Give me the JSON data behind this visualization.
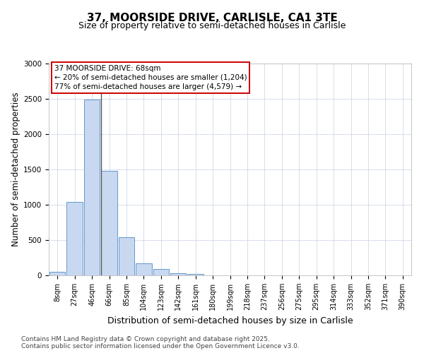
{
  "title1": "37, MOORSIDE DRIVE, CARLISLE, CA1 3TE",
  "title2": "Size of property relative to semi-detached houses in Carlisle",
  "xlabel": "Distribution of semi-detached houses by size in Carlisle",
  "ylabel": "Number of semi-detached properties",
  "categories": [
    "8sqm",
    "27sqm",
    "46sqm",
    "66sqm",
    "85sqm",
    "104sqm",
    "123sqm",
    "142sqm",
    "161sqm",
    "180sqm",
    "199sqm",
    "218sqm",
    "237sqm",
    "256sqm",
    "275sqm",
    "295sqm",
    "314sqm",
    "333sqm",
    "352sqm",
    "371sqm",
    "390sqm"
  ],
  "values": [
    55,
    1040,
    2490,
    1480,
    545,
    175,
    90,
    30,
    25,
    0,
    0,
    0,
    0,
    0,
    0,
    0,
    0,
    0,
    0,
    0,
    0
  ],
  "bar_color": "#c8d8f0",
  "bar_edge_color": "#6699cc",
  "highlight_line_color": "#555555",
  "annotation_text_line1": "37 MOORSIDE DRIVE: 68sqm",
  "annotation_text_line2": "← 20% of semi-detached houses are smaller (1,204)",
  "annotation_text_line3": "77% of semi-detached houses are larger (4,579) →",
  "annotation_box_facecolor": "#ffffff",
  "annotation_box_edgecolor": "#cc0000",
  "ylim": [
    0,
    3000
  ],
  "yticks": [
    0,
    500,
    1000,
    1500,
    2000,
    2500,
    3000
  ],
  "footer1": "Contains HM Land Registry data © Crown copyright and database right 2025.",
  "footer2": "Contains public sector information licensed under the Open Government Licence v3.0.",
  "bg_color": "#ffffff",
  "plot_bg_color": "#ffffff",
  "grid_color": "#d0d8e8",
  "title1_fontsize": 11,
  "title2_fontsize": 9,
  "axis_label_fontsize": 8.5,
  "tick_fontsize": 7,
  "annotation_fontsize": 7.5,
  "footer_fontsize": 6.5
}
